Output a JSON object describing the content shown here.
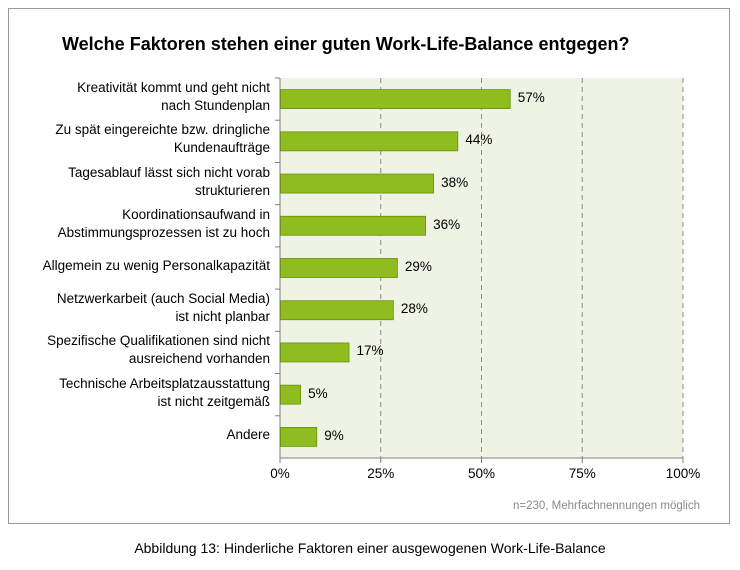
{
  "chart_data": {
    "type": "bar",
    "orientation": "horizontal",
    "title": "Welche Faktoren stehen einer guten Work-Life-Balance entgegen?",
    "categories": [
      "Kreativität kommt und geht nicht\nnach Stundenplan",
      "Zu spät eingereichte bzw. dringliche\nKundenaufträge",
      "Tagesablauf lässt sich nicht vorab\nstrukturieren",
      "Koordinationsaufwand in\nAbstimmungsprozessen ist zu hoch",
      "Allgemein zu wenig Personalkapazität",
      "Netzwerkarbeit (auch Social Media)\nist nicht planbar",
      "Spezifische Qualifikationen sind nicht\nausreichend vorhanden",
      "Technische Arbeitsplatzausstattung\nist nicht zeitgemäß",
      "Andere"
    ],
    "values": [
      57,
      44,
      38,
      36,
      29,
      28,
      17,
      5,
      9
    ],
    "value_labels": [
      "57%",
      "44%",
      "38%",
      "36%",
      "29%",
      "28%",
      "17%",
      "5%",
      "9%"
    ],
    "x_ticks": [
      "0%",
      "25%",
      "50%",
      "75%",
      "100%"
    ],
    "xlim": [
      0,
      100
    ],
    "grid": "vertical-dashed",
    "bar_color": "#8fbc1e",
    "plot_background": "#eff3e4"
  },
  "footnote": "n=230, Mehrfachnennungen möglich",
  "caption": "Abbildung 13: Hinderliche Faktoren einer ausgewogenen Work-Life-Balance"
}
